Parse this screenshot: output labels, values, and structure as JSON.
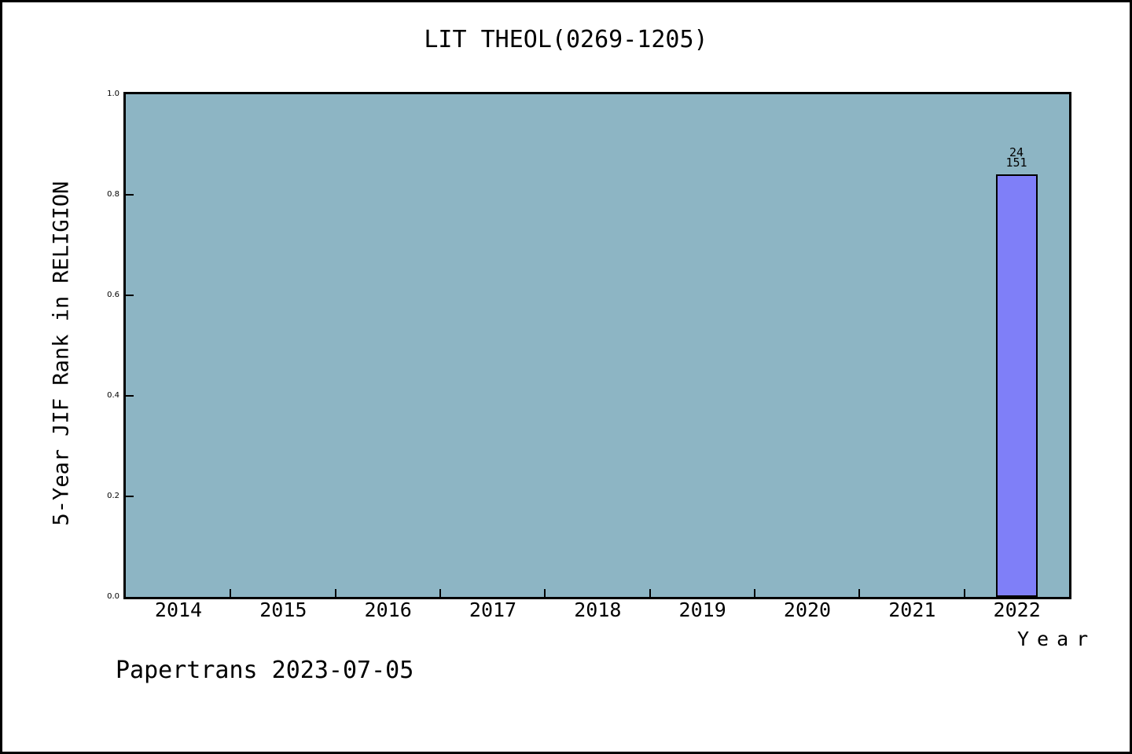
{
  "title": "LIT THEOL(0269-1205)",
  "footer": "Papertrans 2023-07-05",
  "chart_data": {
    "type": "bar",
    "title": "LIT THEOL(0269-1205)",
    "xlabel": "Year",
    "ylabel": "5-Year JIF Rank in RELIGION",
    "categories": [
      "2014",
      "2015",
      "2016",
      "2017",
      "2018",
      "2019",
      "2020",
      "2021",
      "2022"
    ],
    "values": [
      null,
      null,
      null,
      null,
      null,
      null,
      null,
      null,
      0.841
    ],
    "bar_annotations": [
      null,
      null,
      null,
      null,
      null,
      null,
      null,
      null,
      {
        "rank": "24",
        "total": "151"
      }
    ],
    "ylim": [
      0.0,
      1.0
    ],
    "ytick_values": [
      0.0,
      0.2,
      0.4,
      0.6,
      0.8,
      1.0
    ],
    "ytick_labels": [
      "0.0",
      "0.2",
      "0.4",
      "0.6",
      "0.8",
      "1.0"
    ],
    "grid": false,
    "legend": null,
    "colors": {
      "plot_background": "#8db5c4",
      "bar_fill": "#7f7ff8",
      "axis": "#000000",
      "text": "#000000"
    }
  }
}
